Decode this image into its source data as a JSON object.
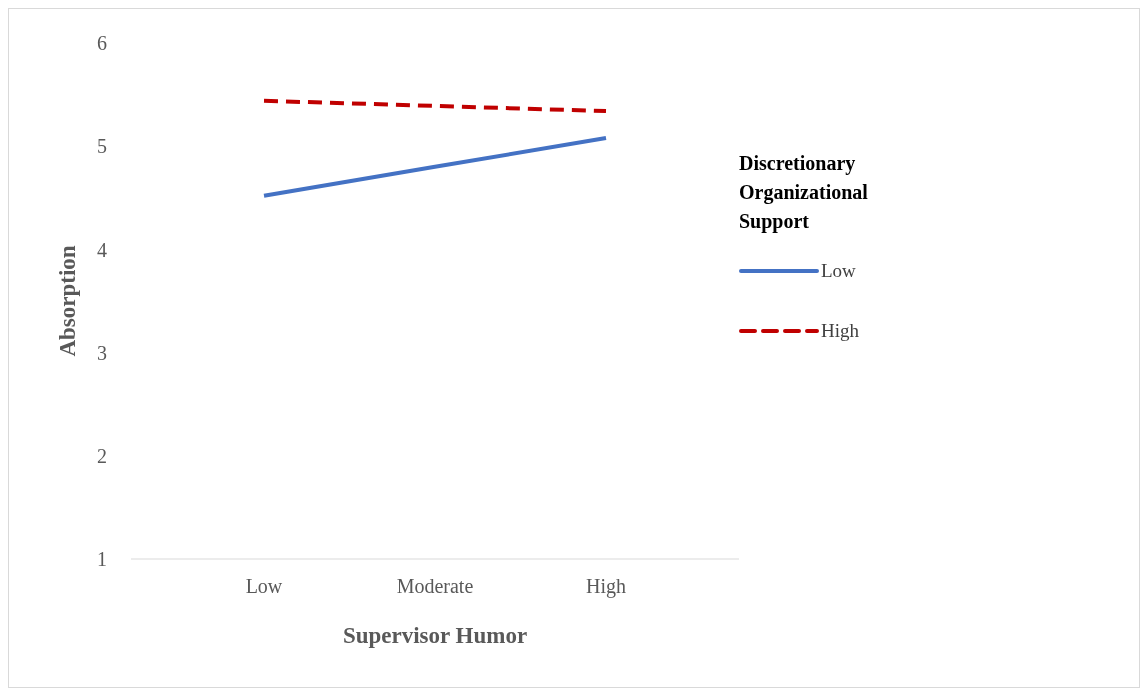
{
  "chart_data": {
    "type": "line",
    "xlabel": "Supervisor Humor",
    "ylabel": "Absorption",
    "legend_title": "Discretionary Organizational Support",
    "categories": [
      "Low",
      "Moderate",
      "High"
    ],
    "series": [
      {
        "name": "Low",
        "color": "#4472c4",
        "line_style": "solid",
        "values": [
          4.52,
          4.8,
          5.08
        ]
      },
      {
        "name": "High",
        "color": "#c00000",
        "line_style": "dashed",
        "values": [
          5.44,
          5.39,
          5.34
        ]
      }
    ],
    "ylim": [
      1,
      6
    ],
    "yticks": [
      1,
      2,
      3,
      4,
      5,
      6
    ],
    "grid": false,
    "legend": "right",
    "marker": "none"
  }
}
